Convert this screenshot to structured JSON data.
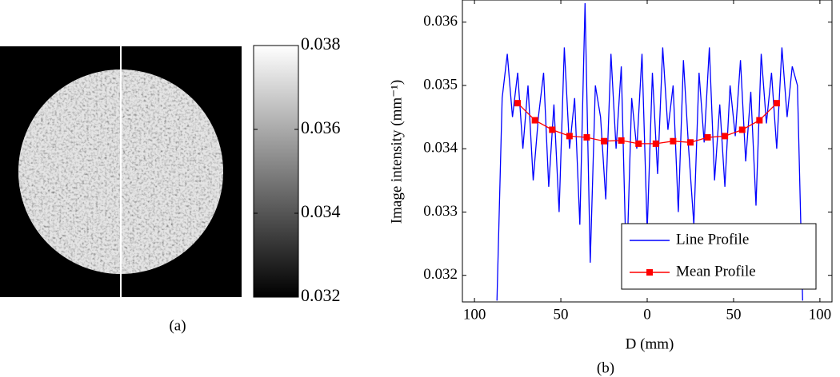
{
  "chart_data": [
    {
      "type": "image",
      "caption": "(a)",
      "clim": [
        0.032,
        0.038
      ],
      "cticks": [
        0.032,
        0.034,
        0.036,
        0.038
      ],
      "colormap": "gray"
    },
    {
      "type": "line",
      "caption": "(b)",
      "xlabel": "D (mm)",
      "ylabel": "Image intensity (mm⁻¹)",
      "xlim": [
        -107,
        107
      ],
      "xticks": [
        {
          "value": -100,
          "label": "100"
        },
        {
          "value": -50,
          "label": "50"
        },
        0,
        50,
        100
      ],
      "ylim": [
        0.03158,
        0.03635
      ],
      "yticks": [
        0.032,
        0.033,
        0.034,
        0.035,
        0.036
      ],
      "legend": "lower right",
      "series": [
        {
          "name": "Line Profile",
          "color": "#0000ff",
          "marker": null,
          "x": [
            -87,
            -84,
            -81,
            -78,
            -75,
            -72,
            -69,
            -66,
            -63,
            -60,
            -57,
            -54,
            -51,
            -48,
            -45,
            -42,
            -39,
            -36,
            -33,
            -30,
            -27,
            -24,
            -21,
            -18,
            -15,
            -12,
            -9,
            -6,
            -3,
            0,
            3,
            6,
            9,
            12,
            15,
            18,
            21,
            24,
            27,
            30,
            33,
            36,
            39,
            42,
            45,
            48,
            51,
            54,
            57,
            60,
            63,
            66,
            69,
            72,
            75,
            78,
            81,
            84,
            87,
            90
          ],
          "values": [
            0.0316,
            0.0348,
            0.0355,
            0.0345,
            0.0352,
            0.034,
            0.035,
            0.0335,
            0.0345,
            0.0352,
            0.0334,
            0.0347,
            0.033,
            0.0356,
            0.034,
            0.0348,
            0.0328,
            0.0363,
            0.0322,
            0.035,
            0.0345,
            0.0332,
            0.0355,
            0.034,
            0.0353,
            0.032,
            0.0348,
            0.034,
            0.0355,
            0.0327,
            0.0352,
            0.0336,
            0.0356,
            0.0343,
            0.035,
            0.033,
            0.0354,
            0.034,
            0.0328,
            0.0352,
            0.0341,
            0.0356,
            0.0335,
            0.0347,
            0.0334,
            0.035,
            0.0342,
            0.0354,
            0.0338,
            0.0349,
            0.0331,
            0.0355,
            0.0344,
            0.0352,
            0.034,
            0.0356,
            0.0345,
            0.0353,
            0.035,
            0.0316
          ]
        },
        {
          "name": "Mean Profile",
          "color": "#ff0000",
          "marker": "square",
          "x": [
            -75,
            -65,
            -55,
            -45,
            -35,
            -25,
            -15,
            -5,
            5,
            15,
            25,
            35,
            45,
            55,
            65,
            75
          ],
          "values": [
            0.03472,
            0.03445,
            0.0343,
            0.0342,
            0.03418,
            0.03412,
            0.03413,
            0.03408,
            0.03408,
            0.03412,
            0.0341,
            0.03418,
            0.0342,
            0.0343,
            0.03445,
            0.03472
          ]
        }
      ]
    }
  ]
}
